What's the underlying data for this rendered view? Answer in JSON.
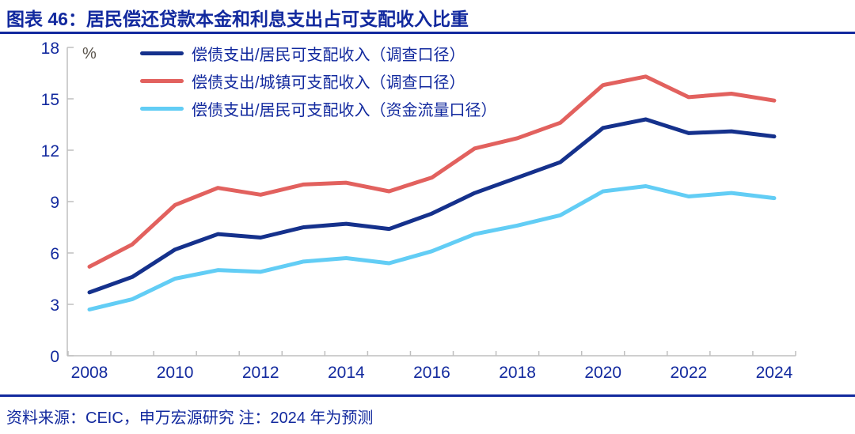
{
  "header": {
    "title": "图表 46：居民偿还贷款本金和利息支出占可支配收入比重"
  },
  "footer": {
    "source_note": "资料来源：CEIC，申万宏源研究 注：2024 年为预测"
  },
  "colors": {
    "accent_blue": "#12299e",
    "axis_gray": "#bfbfbf",
    "unit_gray": "#5a544c",
    "series_navy": "#15318c",
    "series_red": "#e2615e",
    "series_cyan": "#62cdf5"
  },
  "chart_data": {
    "type": "line",
    "title": "居民偿还贷款本金和利息支出占可支配收入比重",
    "unit_label": "%",
    "x": [
      2008,
      2009,
      2010,
      2011,
      2012,
      2013,
      2014,
      2015,
      2016,
      2017,
      2018,
      2019,
      2020,
      2021,
      2022,
      2023,
      2024
    ],
    "x_tick_labels": [
      "2008",
      "2010",
      "2012",
      "2014",
      "2016",
      "2018",
      "2020",
      "2022",
      "2024"
    ],
    "ylim": [
      0,
      18
    ],
    "y_ticks": [
      0,
      3,
      6,
      9,
      12,
      15,
      18
    ],
    "grid": false,
    "legend_position": "top-left-inside",
    "note": "2024 年为预测",
    "series": [
      {
        "name": "偿债支出/居民可支配收入（调查口径）",
        "color": "#15318c",
        "values": [
          3.7,
          4.6,
          6.2,
          7.1,
          6.9,
          7.5,
          7.7,
          7.4,
          8.3,
          9.5,
          10.4,
          11.3,
          13.3,
          13.8,
          13.0,
          13.1,
          12.8
        ]
      },
      {
        "name": "偿债支出/城镇可支配收入（调查口径）",
        "color": "#e2615e",
        "values": [
          5.2,
          6.5,
          8.8,
          9.8,
          9.4,
          10.0,
          10.1,
          9.6,
          10.4,
          12.1,
          12.7,
          13.6,
          15.8,
          16.3,
          15.1,
          15.3,
          14.9
        ]
      },
      {
        "name": "偿债支出/居民可支配收入（资金流量口径）",
        "color": "#62cdf5",
        "values": [
          2.7,
          3.3,
          4.5,
          5.0,
          4.9,
          5.5,
          5.7,
          5.4,
          6.1,
          7.1,
          7.6,
          8.2,
          9.6,
          9.9,
          9.3,
          9.5,
          9.2
        ]
      }
    ]
  }
}
